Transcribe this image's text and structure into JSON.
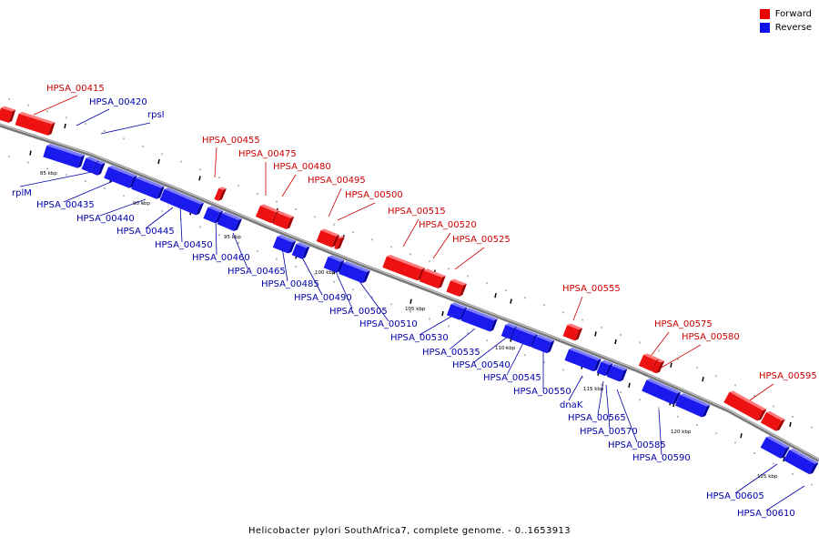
{
  "legend": {
    "forward_label": "Forward",
    "reverse_label": "Reverse",
    "forward_color": "#ff0000",
    "reverse_color": "#0000ff"
  },
  "caption": "Helicobacter pylori SouthAfrica7, complete genome. - 0..1653913",
  "colors": {
    "forward_label_color": "#cc0000",
    "reverse_label_color": "#0000aa",
    "backbone": "#888888"
  },
  "scale_labels": [
    "85 kbp",
    "90 kbp",
    "95 kbp",
    "100 kbp",
    "105 kbp",
    "110 kbp",
    "115 kbp",
    "120 kbp",
    "125 kbp"
  ],
  "forward_genes": [
    "HPSA_00415",
    "HPSA_00455",
    "HPSA_00475",
    "HPSA_00480",
    "HPSA_00495",
    "HPSA_00500",
    "HPSA_00515",
    "HPSA_00520",
    "HPSA_00525",
    "HPSA_00555",
    "HPSA_00575",
    "HPSA_00580",
    "HPSA_00595"
  ],
  "reverse_genes": [
    "HPSA_00420",
    "rpsI",
    "rplM",
    "HPSA_00435",
    "HPSA_00440",
    "HPSA_00445",
    "HPSA_00450",
    "HPSA_00460",
    "HPSA_00465",
    "HPSA_00485",
    "HPSA_00490",
    "HPSA_00505",
    "HPSA_00510",
    "HPSA_00530",
    "HPSA_00535",
    "HPSA_00540",
    "HPSA_00545",
    "HPSA_00550",
    "dnaK",
    "HPSA_00565",
    "HPSA_00570",
    "HPSA_00585",
    "HPSA_00590",
    "HPSA_00605",
    "HPSA_00610"
  ]
}
